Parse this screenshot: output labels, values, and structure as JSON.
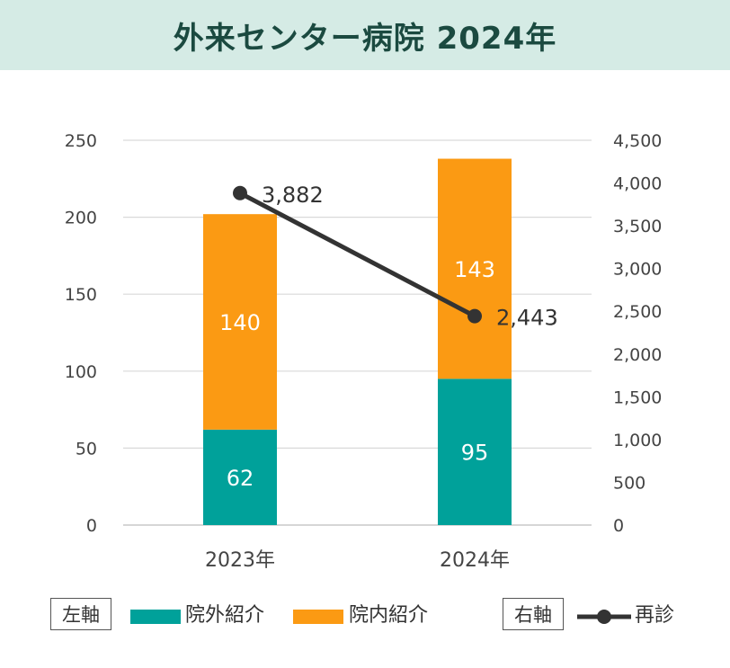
{
  "title": "外来センター病院 2024年",
  "legend": {
    "left_axis_label": "左軸",
    "right_axis_label": "右軸",
    "bottom_series": "院外紹介",
    "top_series": "院内紹介",
    "line_series": "再診"
  },
  "colors": {
    "title_bg": "#d5ebe5",
    "title_text": "#1b4a40",
    "bottom": "#00a19a",
    "top": "#fb9a13",
    "line": "#333333"
  },
  "chart_data": {
    "type": "bar",
    "stacked": true,
    "categories": [
      "2023年",
      "2024年"
    ],
    "series": [
      {
        "name": "院外紹介",
        "axis": "left",
        "values": [
          62,
          95
        ]
      },
      {
        "name": "院内紹介",
        "axis": "left",
        "values": [
          140,
          143
        ]
      },
      {
        "name": "再診",
        "axis": "right",
        "type": "line",
        "values": [
          3882,
          2443
        ]
      }
    ],
    "data_labels": {
      "bottom": [
        "62",
        "95"
      ],
      "top": [
        "140",
        "143"
      ],
      "line": [
        "3,882",
        "2,443"
      ]
    },
    "left_axis": {
      "range": [
        0,
        250
      ],
      "ticks": [
        "0",
        "50",
        "100",
        "150",
        "200",
        "250"
      ]
    },
    "right_axis": {
      "range": [
        0,
        4500
      ],
      "ticks": [
        "0",
        "500",
        "1,000",
        "1,500",
        "2,000",
        "2,500",
        "3,000",
        "3,500",
        "4,000",
        "4,500"
      ]
    },
    "grid": true,
    "legend_position": "bottom"
  }
}
